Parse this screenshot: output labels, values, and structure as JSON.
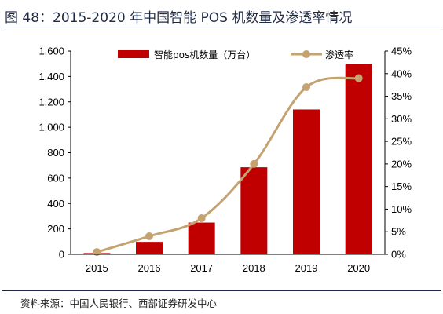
{
  "header": {
    "title": "图 48：2015-2020 年中国智能 POS 机数量及渗透率情况"
  },
  "footer": {
    "source": "资料来源：中国人民银行、西部证券研发中心"
  },
  "colors": {
    "bar": "#c00000",
    "line": "#c4a371",
    "axis": "#000000",
    "rule": "#1f2a44"
  },
  "chart_data": {
    "type": "bar",
    "categories": [
      "2015",
      "2016",
      "2017",
      "2018",
      "2019",
      "2020"
    ],
    "series": [
      {
        "name": "智能pos机数量（万台）",
        "type": "bar",
        "axis": "left",
        "values": [
          10,
          98,
          250,
          685,
          1140,
          1495
        ]
      },
      {
        "name": "渗透率",
        "type": "line",
        "axis": "right",
        "smooth": true,
        "values": [
          0.005,
          0.04,
          0.08,
          0.2,
          0.37,
          0.39
        ]
      }
    ],
    "y_left": {
      "ylim": [
        0,
        1600
      ],
      "ticks": [
        "0",
        "200",
        "400",
        "600",
        "800",
        "1,000",
        "1,200",
        "1,400",
        "1,600"
      ]
    },
    "y_right": {
      "ylim": [
        0,
        0.45
      ],
      "ticks": [
        "0%",
        "5%",
        "10%",
        "15%",
        "20%",
        "25%",
        "30%",
        "35%",
        "40%",
        "45%"
      ]
    },
    "legend_position": "top",
    "grid": false
  }
}
